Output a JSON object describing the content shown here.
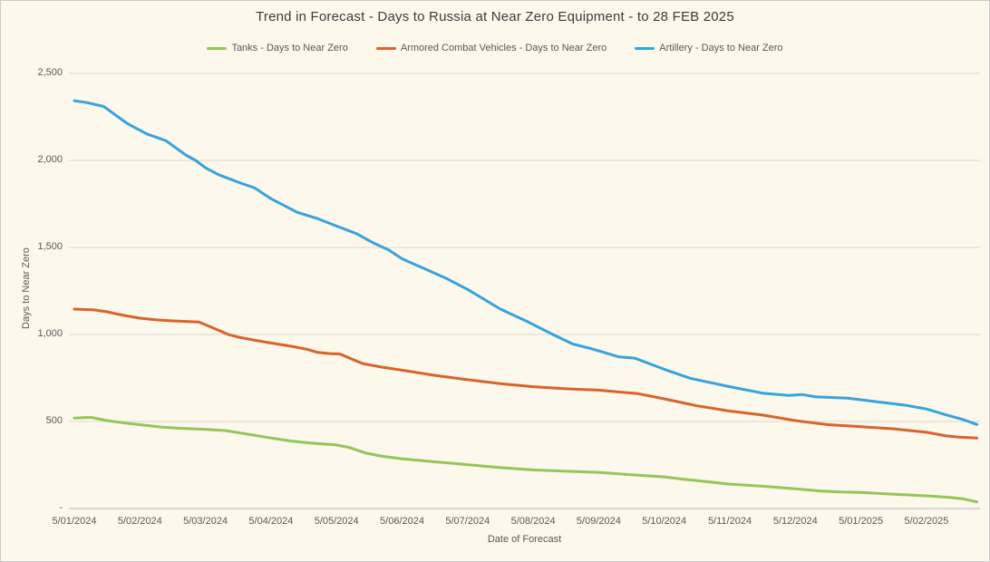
{
  "chart_data": {
    "type": "line",
    "title": "Trend in Forecast - Days to Russia at Near Zero Equipment - to 28 FEB 2025",
    "xlabel": "Date of Forecast",
    "ylabel": "Days to Near Zero",
    "legend_position": "top",
    "grid": "horizontal",
    "ylim": [
      0,
      2500
    ],
    "x_unit": "month index from 5/01/2024 tick, fractional = weekly forecasts, lines extend to ~28 FEB 2025",
    "x_tick_labels": [
      "5/01/2024",
      "5/02/2024",
      "5/03/2024",
      "5/04/2024",
      "5/05/2024",
      "5/06/2024",
      "5/07/2024",
      "5/08/2024",
      "5/09/2024",
      "5/10/2024",
      "5/11/2024",
      "5/12/2024",
      "5/01/2025",
      "5/02/2025"
    ],
    "y_ticks": [
      {
        "value": 2500,
        "label": "2,500"
      },
      {
        "value": 2000,
        "label": "2,000"
      },
      {
        "value": 1500,
        "label": "1,500"
      },
      {
        "value": 1000,
        "label": "1,000"
      },
      {
        "value": 500,
        "label": "500"
      },
      {
        "value": 0,
        "label": "-"
      }
    ],
    "colors": {
      "background": "#FCF8EC",
      "border": "#CBCBCB",
      "gridline": "#DCD8CD",
      "axis_line": "#BDB9AE",
      "tick_text": "#595959",
      "title_text": "#3C3C3C"
    },
    "series": [
      {
        "name": "Tanks - Days to Near Zero",
        "id": "tanks",
        "color": "#94C65A",
        "points": [
          [
            0,
            520
          ],
          [
            0.25,
            524
          ],
          [
            0.5,
            505
          ],
          [
            0.75,
            492
          ],
          [
            1,
            482
          ],
          [
            1.3,
            469
          ],
          [
            1.6,
            461
          ],
          [
            2,
            455
          ],
          [
            2.3,
            448
          ],
          [
            2.5,
            436
          ],
          [
            2.7,
            424
          ],
          [
            3,
            405
          ],
          [
            3.3,
            388
          ],
          [
            3.6,
            376
          ],
          [
            4,
            365
          ],
          [
            4.2,
            350
          ],
          [
            4.45,
            318
          ],
          [
            4.7,
            300
          ],
          [
            5,
            286
          ],
          [
            5.5,
            268
          ],
          [
            6,
            252
          ],
          [
            6.5,
            235
          ],
          [
            7,
            222
          ],
          [
            7.5,
            214
          ],
          [
            8,
            208
          ],
          [
            8.5,
            194
          ],
          [
            9,
            182
          ],
          [
            9.3,
            168
          ],
          [
            9.6,
            156
          ],
          [
            10,
            140
          ],
          [
            10.5,
            128
          ],
          [
            11,
            113
          ],
          [
            11.4,
            100
          ],
          [
            11.7,
            95
          ],
          [
            12,
            92
          ],
          [
            12.5,
            82
          ],
          [
            13,
            73
          ],
          [
            13.35,
            64
          ],
          [
            13.55,
            56
          ],
          [
            13.77,
            38
          ]
        ]
      },
      {
        "name": "Armored Combat Vehicles - Days to Near Zero",
        "id": "armored-combat-vehicles",
        "color": "#D9632C",
        "points": [
          [
            0,
            1146
          ],
          [
            0.3,
            1141
          ],
          [
            0.5,
            1130
          ],
          [
            0.75,
            1110
          ],
          [
            1,
            1094
          ],
          [
            1.25,
            1084
          ],
          [
            1.5,
            1078
          ],
          [
            1.9,
            1072
          ],
          [
            2.1,
            1040
          ],
          [
            2.35,
            1000
          ],
          [
            2.5,
            985
          ],
          [
            2.75,
            967
          ],
          [
            3,
            951
          ],
          [
            3.3,
            933
          ],
          [
            3.55,
            915
          ],
          [
            3.7,
            898
          ],
          [
            3.9,
            890
          ],
          [
            4.05,
            888
          ],
          [
            4.4,
            833
          ],
          [
            4.7,
            812
          ],
          [
            5,
            795
          ],
          [
            5.5,
            765
          ],
          [
            6,
            740
          ],
          [
            6.5,
            717
          ],
          [
            7,
            700
          ],
          [
            7.5,
            688
          ],
          [
            8,
            680
          ],
          [
            8.3,
            670
          ],
          [
            8.6,
            660
          ],
          [
            9,
            630
          ],
          [
            9.5,
            590
          ],
          [
            10,
            560
          ],
          [
            10.5,
            537
          ],
          [
            11,
            505
          ],
          [
            11.5,
            482
          ],
          [
            12,
            470
          ],
          [
            12.5,
            458
          ],
          [
            13,
            438
          ],
          [
            13.3,
            417
          ],
          [
            13.5,
            410
          ],
          [
            13.77,
            405
          ]
        ]
      },
      {
        "name": "Artillery - Days to Near Zero",
        "id": "artillery",
        "color": "#38A3DC",
        "points": [
          [
            0,
            2343
          ],
          [
            0.2,
            2332
          ],
          [
            0.45,
            2310
          ],
          [
            0.8,
            2214
          ],
          [
            1.1,
            2153
          ],
          [
            1.4,
            2113
          ],
          [
            1.7,
            2031
          ],
          [
            1.85,
            2000
          ],
          [
            2,
            1958
          ],
          [
            2.2,
            1918
          ],
          [
            2.5,
            1875
          ],
          [
            2.75,
            1842
          ],
          [
            3,
            1780
          ],
          [
            3.4,
            1702
          ],
          [
            3.7,
            1667
          ],
          [
            4,
            1623
          ],
          [
            4.3,
            1580
          ],
          [
            4.55,
            1528
          ],
          [
            4.8,
            1485
          ],
          [
            5,
            1435
          ],
          [
            5.3,
            1385
          ],
          [
            5.66,
            1325
          ],
          [
            6,
            1259
          ],
          [
            6.5,
            1146
          ],
          [
            6.9,
            1076
          ],
          [
            7.3,
            1000
          ],
          [
            7.6,
            946
          ],
          [
            7.9,
            917
          ],
          [
            8.3,
            872
          ],
          [
            8.55,
            864
          ],
          [
            9,
            800
          ],
          [
            9.4,
            748
          ],
          [
            10,
            700
          ],
          [
            10.5,
            663
          ],
          [
            10.9,
            650
          ],
          [
            11.1,
            655
          ],
          [
            11.3,
            642
          ],
          [
            11.8,
            634
          ],
          [
            12.3,
            611
          ],
          [
            12.7,
            592
          ],
          [
            13,
            572
          ],
          [
            13.3,
            538
          ],
          [
            13.55,
            512
          ],
          [
            13.77,
            483
          ]
        ]
      }
    ]
  }
}
